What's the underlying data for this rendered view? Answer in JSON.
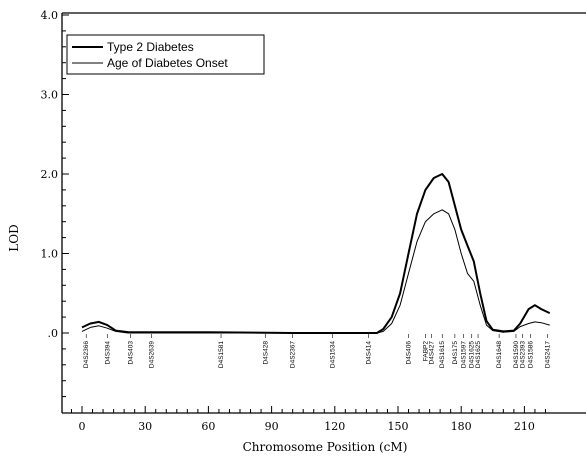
{
  "chart_data": {
    "type": "line",
    "title": "",
    "xlabel": "Chromosome Position (cM)",
    "ylabel": "LOD",
    "xlim": [
      -5,
      222
    ],
    "ylim": [
      -0.95,
      4.0
    ],
    "x_ticks": [
      0,
      30,
      60,
      90,
      120,
      150,
      180,
      210
    ],
    "x_tick_labels": [
      "0",
      "30",
      "60",
      "90",
      "120",
      "150",
      "180",
      "210"
    ],
    "y_ticks": [
      0,
      1,
      2,
      3,
      4
    ],
    "y_tick_labels": [
      ".0",
      "1.0",
      "2.0",
      "3.0",
      "4.0"
    ],
    "legend": {
      "placement": "top-left",
      "entries": [
        "Type 2 Diabetes",
        "Age of Diabetes Onset"
      ]
    },
    "series": [
      {
        "name": "Type 2 Diabetes",
        "x": [
          0,
          4,
          8,
          12,
          16,
          22,
          30,
          60,
          100,
          140,
          143,
          147,
          151,
          155,
          159,
          163,
          167,
          171,
          174,
          177,
          180,
          183,
          186,
          189,
          192,
          195,
          200,
          205,
          208,
          212,
          215,
          218,
          222
        ],
        "y": [
          0.07,
          0.12,
          0.14,
          0.1,
          0.03,
          0.01,
          0.01,
          0.01,
          0.0,
          0.0,
          0.05,
          0.2,
          0.5,
          1.0,
          1.5,
          1.8,
          1.95,
          2.0,
          1.9,
          1.6,
          1.3,
          1.1,
          0.9,
          0.5,
          0.15,
          0.04,
          0.02,
          0.03,
          0.12,
          0.3,
          0.35,
          0.3,
          0.25
        ]
      },
      {
        "name": "Age of Diabetes Onset",
        "x": [
          0,
          4,
          8,
          12,
          16,
          22,
          30,
          60,
          100,
          140,
          143,
          147,
          151,
          155,
          159,
          163,
          167,
          171,
          174,
          177,
          180,
          183,
          186,
          189,
          192,
          195,
          200,
          205,
          208,
          212,
          215,
          218,
          222
        ],
        "y": [
          0.02,
          0.07,
          0.09,
          0.06,
          0.02,
          0.0,
          0.0,
          0.0,
          0.0,
          0.0,
          0.02,
          0.12,
          0.35,
          0.75,
          1.15,
          1.4,
          1.5,
          1.55,
          1.5,
          1.3,
          1.0,
          0.75,
          0.65,
          0.35,
          0.1,
          0.03,
          0.01,
          0.02,
          0.08,
          0.12,
          0.14,
          0.13,
          0.1
        ]
      }
    ],
    "markers": [
      {
        "label": "D4S2366",
        "x": 2
      },
      {
        "label": "D4S394",
        "x": 12
      },
      {
        "label": "D4S403",
        "x": 23
      },
      {
        "label": "D4S2639",
        "x": 33
      },
      {
        "label": "D4S1581",
        "x": 66
      },
      {
        "label": "D4S428",
        "x": 87
      },
      {
        "label": "D4S2367",
        "x": 100
      },
      {
        "label": "D4S1534",
        "x": 119
      },
      {
        "label": "D4S414",
        "x": 136
      },
      {
        "label": "D4S406",
        "x": 155
      },
      {
        "label": "FABP2",
        "x": 163
      },
      {
        "label": "D4S427",
        "x": 166
      },
      {
        "label": "D4S1615",
        "x": 171
      },
      {
        "label": "D4S175",
        "x": 177
      },
      {
        "label": "D4S1597",
        "x": 181
      },
      {
        "label": "D4S1625",
        "x": 185
      },
      {
        "label": "D4S1625",
        "x": 188
      },
      {
        "label": "D4S1648",
        "x": 198
      },
      {
        "label": "D4S1590",
        "x": 206
      },
      {
        "label": "D4S2393",
        "x": 209
      },
      {
        "label": "D4S1586",
        "x": 213
      },
      {
        "label": "D4S2417",
        "x": 221
      }
    ]
  }
}
